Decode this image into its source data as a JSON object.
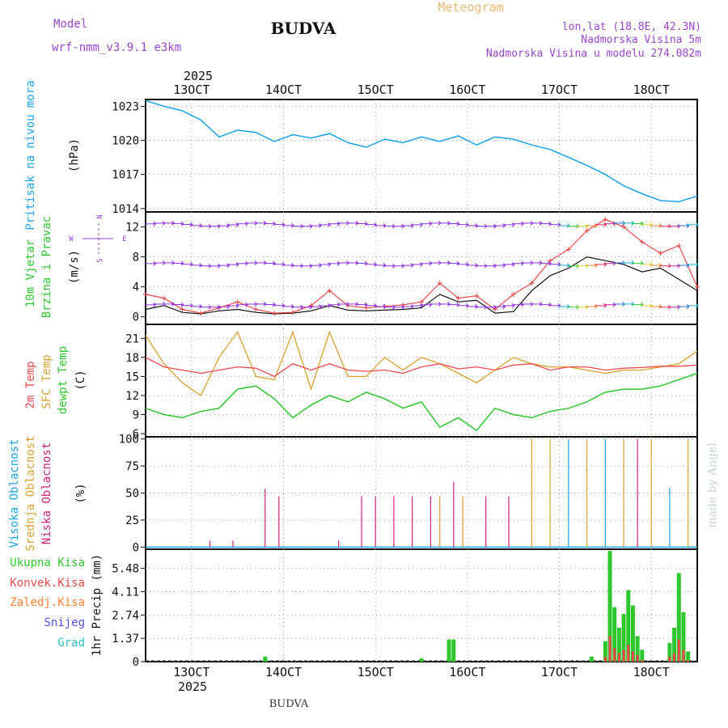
{
  "header": {
    "model_label": "Model",
    "model_name": "wrf-nmm_v3.9.1 e3km",
    "location": "BUDVA",
    "chart_title": "Meteogram",
    "coords": "lon,lat (18.8E, 42.3N)",
    "altitude": "Nadmorska Visina 5m",
    "model_altitude": "Nadmorska Visina u modelu 274.082m"
  },
  "footer": {
    "location": "BUDVA",
    "watermark": "made by Angel"
  },
  "colors": {
    "pressure": "#1aa3e8",
    "wind_speed": "#111111",
    "gust": "#e84a4a",
    "temp2m": "#e84a4a",
    "sfc": "#d9a030",
    "dewpt": "#2dc62d",
    "high_cloud": "#1aa3e8",
    "mid_cloud": "#d9a030",
    "low_cloud": "#cc2277",
    "total_precip": "#2dc62d",
    "conv_precip": "#e84a4a",
    "frozen": "#ff8030",
    "snow": "#5050e0",
    "graupel": "#30c0c0",
    "label_purple": "#9944cc"
  },
  "chart_data": [
    {
      "type": "line",
      "name": "pressure",
      "ylabel_parts": [
        "Pritisak na nivou mora",
        "(hPa)"
      ],
      "yticks": [
        1014,
        1017,
        1020,
        1023
      ],
      "ylim": [
        1013.7,
        1023.6
      ],
      "x_days": [
        12.5,
        12.7,
        12.9,
        13.1,
        13.3,
        13.5,
        13.7,
        13.9,
        14.1,
        14.3,
        14.5,
        14.7,
        14.9,
        15.1,
        15.3,
        15.5,
        15.7,
        15.9,
        16.1,
        16.3,
        16.5,
        16.7,
        16.9,
        17.1,
        17.3,
        17.5,
        17.7,
        17.9,
        18.1,
        18.3,
        18.5
      ],
      "values": [
        1023.5,
        1023.0,
        1022.6,
        1021.8,
        1020.3,
        1020.9,
        1020.7,
        1019.9,
        1020.5,
        1020.2,
        1020.6,
        1019.8,
        1019.4,
        1020.1,
        1019.8,
        1020.3,
        1019.9,
        1020.4,
        1019.6,
        1020.3,
        1020.1,
        1019.6,
        1019.2,
        1018.5,
        1017.8,
        1017.0,
        1016.0,
        1015.3,
        1014.7,
        1014.6,
        1015.1
      ]
    },
    {
      "type": "line",
      "name": "wind",
      "ylabel_parts": [
        "10m Vjetar",
        "Brzina i Pravac",
        "(m/s)"
      ],
      "compass": [
        "N",
        "E",
        "S",
        "W"
      ],
      "yticks": [
        0,
        4,
        8,
        12
      ],
      "ylim": [
        -1,
        14
      ],
      "x_days": [
        12.5,
        12.7,
        12.9,
        13.1,
        13.3,
        13.5,
        13.7,
        13.9,
        14.1,
        14.3,
        14.5,
        14.7,
        14.9,
        15.1,
        15.3,
        15.5,
        15.7,
        15.9,
        16.1,
        16.3,
        16.5,
        16.7,
        16.9,
        17.1,
        17.3,
        17.5,
        17.7,
        17.9,
        18.1,
        18.3,
        18.5
      ],
      "series": [
        {
          "name": "Brzina",
          "values": [
            1.0,
            1.5,
            0.6,
            0.4,
            0.8,
            1.0,
            0.6,
            0.4,
            0.5,
            0.8,
            1.5,
            0.9,
            0.8,
            0.9,
            1.0,
            1.2,
            3.0,
            2.0,
            2.2,
            0.5,
            0.7,
            3.5,
            5.5,
            6.5,
            8.0,
            7.5,
            7.0,
            6.0,
            6.5,
            5.0,
            3.5
          ]
        },
        {
          "name": "Udari",
          "values": [
            3.0,
            2.5,
            1.0,
            0.5,
            1.2,
            2.0,
            1.0,
            0.5,
            0.6,
            1.5,
            3.5,
            1.5,
            1.2,
            1.4,
            1.6,
            2.0,
            4.5,
            2.5,
            2.8,
            1.0,
            3.0,
            4.5,
            7.5,
            9.0,
            11.5,
            13.0,
            12.0,
            10.0,
            8.5,
            9.5,
            4.0
          ]
        }
      ],
      "arrow_levels": [
        1.5,
        7.0,
        12.3
      ]
    },
    {
      "type": "line",
      "name": "temperature",
      "ylabel_parts": [
        "2m Temp",
        "SFC Temp",
        "dewpt Temp",
        "(C)"
      ],
      "yticks": [
        6,
        9,
        12,
        15,
        18,
        21
      ],
      "ylim": [
        5.5,
        23.2
      ],
      "x_days": [
        12.5,
        12.7,
        12.9,
        13.1,
        13.3,
        13.5,
        13.7,
        13.9,
        14.1,
        14.3,
        14.5,
        14.7,
        14.9,
        15.1,
        15.3,
        15.5,
        15.7,
        15.9,
        16.1,
        16.3,
        16.5,
        16.7,
        16.9,
        17.1,
        17.3,
        17.5,
        17.7,
        17.9,
        18.1,
        18.3,
        18.5
      ],
      "series": [
        {
          "name": "2m Temp",
          "values": [
            18.0,
            16.5,
            16.0,
            15.5,
            16.0,
            16.5,
            16.3,
            15.0,
            17.0,
            16.0,
            17.0,
            16.0,
            15.8,
            16.0,
            15.5,
            16.5,
            17.0,
            16.2,
            16.5,
            16.0,
            16.8,
            17.0,
            16.0,
            16.5,
            16.5,
            16.0,
            16.3,
            16.4,
            16.6,
            16.6,
            16.8
          ]
        },
        {
          "name": "SFC Temp",
          "values": [
            21.5,
            17.0,
            14.0,
            12.0,
            18.0,
            22.0,
            15.0,
            14.5,
            22.0,
            13.0,
            22.0,
            15.0,
            15.0,
            18.0,
            16.0,
            18.0,
            17.0,
            15.5,
            14.0,
            16.0,
            18.0,
            17.0,
            16.5,
            16.5,
            16.0,
            15.5,
            16.0,
            16.0,
            16.5,
            17.0,
            19.0
          ]
        },
        {
          "name": "dewpt Temp",
          "values": [
            10.0,
            9.0,
            8.5,
            9.5,
            10.0,
            13.0,
            13.5,
            11.5,
            8.5,
            10.5,
            12.0,
            11.0,
            12.5,
            11.5,
            10.0,
            11.0,
            7.0,
            8.5,
            6.5,
            10.0,
            9.0,
            8.5,
            9.5,
            10.0,
            11.0,
            12.5,
            13.0,
            13.0,
            13.5,
            14.5,
            15.5
          ]
        }
      ]
    },
    {
      "type": "bar",
      "name": "clouds",
      "ylabel_parts": [
        "Visoka Oblacnost",
        "Srednja Oblacnost",
        "Niska Oblacnost",
        "(%)"
      ],
      "yticks": [
        0,
        25,
        50,
        75,
        100
      ],
      "ylim": [
        -2,
        102
      ],
      "bars": [
        {
          "series": "low",
          "x": 13.2,
          "v": 6
        },
        {
          "series": "low",
          "x": 13.45,
          "v": 6
        },
        {
          "series": "low",
          "x": 13.8,
          "v": 54
        },
        {
          "series": "low",
          "x": 13.95,
          "v": 47
        },
        {
          "series": "low",
          "x": 14.6,
          "v": 6
        },
        {
          "series": "low",
          "x": 14.85,
          "v": 47
        },
        {
          "series": "low",
          "x": 15.0,
          "v": 47
        },
        {
          "series": "low",
          "x": 15.2,
          "v": 47
        },
        {
          "series": "low",
          "x": 15.4,
          "v": 47
        },
        {
          "series": "low",
          "x": 15.6,
          "v": 47
        },
        {
          "series": "mid",
          "x": 15.7,
          "v": 47
        },
        {
          "series": "low",
          "x": 15.85,
          "v": 60
        },
        {
          "series": "mid",
          "x": 15.95,
          "v": 47
        },
        {
          "series": "low",
          "x": 16.2,
          "v": 47
        },
        {
          "series": "low",
          "x": 16.45,
          "v": 47
        },
        {
          "series": "mid",
          "x": 16.7,
          "v": 100
        },
        {
          "series": "mid",
          "x": 16.9,
          "v": 100
        },
        {
          "series": "high",
          "x": 17.1,
          "v": 100
        },
        {
          "series": "mid",
          "x": 17.3,
          "v": 100
        },
        {
          "series": "high",
          "x": 17.5,
          "v": 100
        },
        {
          "series": "mid",
          "x": 17.7,
          "v": 100
        },
        {
          "series": "low",
          "x": 17.85,
          "v": 100
        },
        {
          "series": "mid",
          "x": 18.0,
          "v": 100
        },
        {
          "series": "high",
          "x": 18.2,
          "v": 55
        },
        {
          "series": "mid",
          "x": 18.4,
          "v": 100
        }
      ]
    },
    {
      "type": "bar",
      "name": "precip",
      "legend": [
        "Ukupna Kisa",
        "Konvek.Kisa",
        "Zaledj.Kisa",
        "Snijeg",
        "Grad"
      ],
      "ylabel": "1hr Precip (mm)",
      "yticks": [
        "0",
        "1.37",
        "2.74",
        "4.11",
        "5.48"
      ],
      "ylim": [
        0,
        6.6
      ],
      "bars": [
        {
          "x": 13.8,
          "total": 0.3,
          "conv": 0.0
        },
        {
          "x": 15.5,
          "total": 0.2,
          "conv": 0.0
        },
        {
          "x": 15.8,
          "total": 1.3,
          "conv": 0.0
        },
        {
          "x": 15.85,
          "total": 1.3,
          "conv": 0.0
        },
        {
          "x": 17.35,
          "total": 0.3,
          "conv": 0.0
        },
        {
          "x": 17.5,
          "total": 1.2,
          "conv": 0.3
        },
        {
          "x": 17.55,
          "total": 6.5,
          "conv": 1.5
        },
        {
          "x": 17.6,
          "total": 3.2,
          "conv": 0.8
        },
        {
          "x": 17.65,
          "total": 2.0,
          "conv": 0.5
        },
        {
          "x": 17.7,
          "total": 2.8,
          "conv": 0.7
        },
        {
          "x": 17.75,
          "total": 4.2,
          "conv": 1.0
        },
        {
          "x": 17.8,
          "total": 3.3,
          "conv": 0.6
        },
        {
          "x": 17.85,
          "total": 1.5,
          "conv": 0.4
        },
        {
          "x": 17.9,
          "total": 0.7,
          "conv": 0.1
        },
        {
          "x": 18.2,
          "total": 1.1,
          "conv": 0.3
        },
        {
          "x": 18.25,
          "total": 2.0,
          "conv": 0.5
        },
        {
          "x": 18.3,
          "total": 5.2,
          "conv": 1.3
        },
        {
          "x": 18.35,
          "total": 2.9,
          "conv": 0.7
        },
        {
          "x": 18.4,
          "total": 0.6,
          "conv": 0.1
        }
      ]
    }
  ],
  "x_axis": {
    "ticks": [
      "13OCT",
      "14OCT",
      "15OCT",
      "16OCT",
      "17OCT",
      "18OCT"
    ],
    "tick_days": [
      13,
      14,
      15,
      16,
      17,
      18
    ],
    "xlim_days": [
      12.5,
      18.5
    ],
    "year": "2025"
  }
}
